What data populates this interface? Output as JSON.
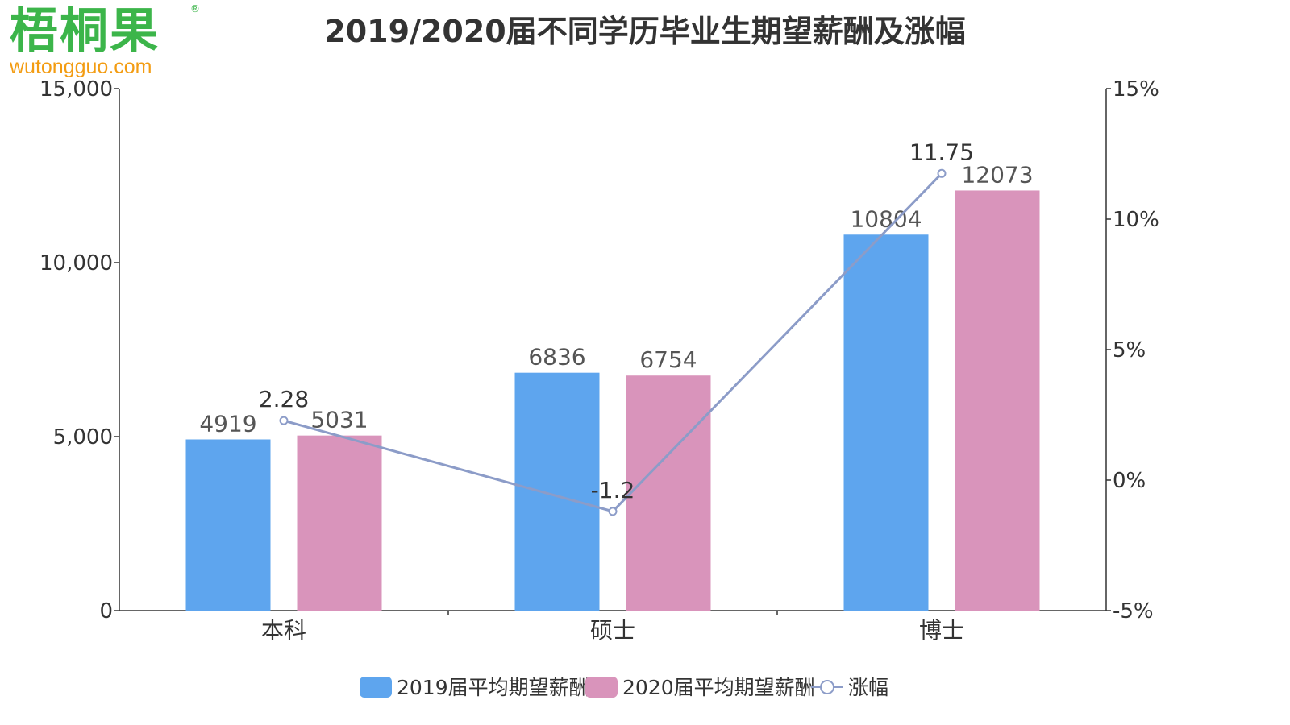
{
  "logo": {
    "text_cn": "梧桐果",
    "text_en": "wutongguo.com",
    "registered_mark": "®"
  },
  "colors": {
    "series_2019": "#5ea5ee",
    "series_2020": "#d994bb",
    "line": "#8c9cc8",
    "axis": "#333333"
  },
  "chart_data": {
    "type": "bar",
    "title": "2019/2020届不同学历毕业生期望薪酬及涨幅",
    "categories": [
      "本科",
      "硕士",
      "博士"
    ],
    "series": [
      {
        "name": "2019届平均期望薪酬",
        "type": "bar",
        "axis": "left",
        "values": [
          4919,
          6836,
          10804
        ],
        "labels": [
          "4919",
          "6836",
          "10804"
        ]
      },
      {
        "name": "2020届平均期望薪酬",
        "type": "bar",
        "axis": "left",
        "values": [
          5031,
          6754,
          12073
        ],
        "labels": [
          "5031",
          "6754",
          "12073"
        ]
      },
      {
        "name": "涨幅",
        "type": "line",
        "axis": "right",
        "values": [
          2.28,
          -1.2,
          11.75
        ],
        "labels": [
          "2.28",
          "-1.2",
          "11.75"
        ]
      }
    ],
    "y_left": {
      "ylim": [
        0,
        15000
      ],
      "ticks": [
        0,
        5000,
        10000,
        15000
      ],
      "tick_labels": [
        "0",
        "5,000",
        "10,000",
        "15,000"
      ]
    },
    "y_right": {
      "ylim": [
        -5,
        15
      ],
      "ticks": [
        -5,
        0,
        5,
        10,
        15
      ],
      "tick_labels": [
        "-5%",
        "0%",
        "5%",
        "10%",
        "15%"
      ]
    },
    "grid": false,
    "legend_position": "bottom-center"
  }
}
